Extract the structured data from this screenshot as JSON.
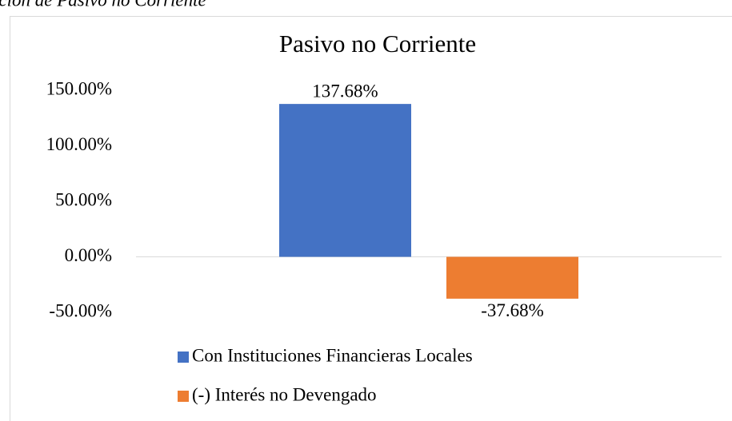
{
  "caption": "ición de Pasivo no Corriente",
  "chart_data": {
    "type": "bar",
    "title": "Pasivo no Corriente",
    "categories": [
      null
    ],
    "series": [
      {
        "name": "Con Instituciones Financieras Locales",
        "color": "#4472c4",
        "values": [
          137.68
        ],
        "value_labels": [
          "137.68%"
        ]
      },
      {
        "name": "(-) Interés no Devengado",
        "color": "#ed7d31",
        "values": [
          -37.68
        ],
        "value_labels": [
          "-37.68%"
        ]
      }
    ],
    "ylim": [
      -50,
      150
    ],
    "yticks": [
      {
        "value": 150,
        "label": "150.00%"
      },
      {
        "value": 100,
        "label": "100.00%"
      },
      {
        "value": 50,
        "label": "50.00%"
      },
      {
        "value": 0,
        "label": "0.00%"
      },
      {
        "value": -50,
        "label": "-50.00%"
      }
    ],
    "grid": false,
    "legend": "bottom"
  }
}
